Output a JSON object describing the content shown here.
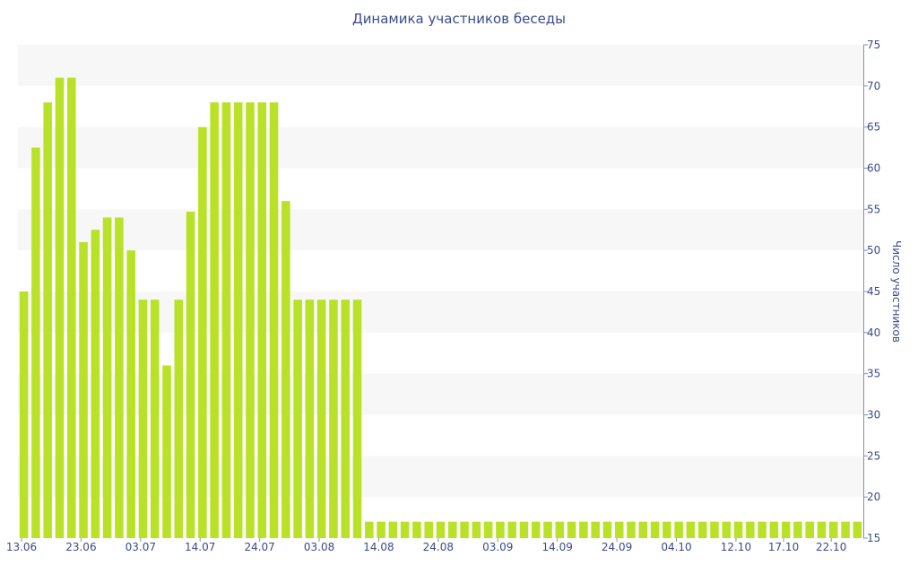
{
  "chart_data": {
    "type": "bar",
    "title": "Динамика участников беседы",
    "ylabel": "Число участников",
    "xlabel": "",
    "ylim": [
      15,
      75
    ],
    "y_ticks": [
      15,
      20,
      25,
      30,
      35,
      40,
      45,
      50,
      55,
      60,
      65,
      70,
      75
    ],
    "grid": "alternating horizontal bands",
    "y_axis_position": "right",
    "x_tick_labels": [
      "13.06",
      "23.06",
      "03.07",
      "14.07",
      "24.07",
      "03.08",
      "14.08",
      "24.08",
      "03.09",
      "14.09",
      "24.09",
      "04.10",
      "12.10",
      "17.10",
      "22.10"
    ],
    "x_tick_positions": [
      0,
      5,
      10,
      15,
      20,
      25,
      30,
      35,
      40,
      45,
      50,
      55,
      60,
      64,
      68
    ],
    "series": [
      {
        "values": [
          45,
          62.5,
          68,
          71,
          71,
          51,
          52.5,
          54,
          54,
          50,
          44,
          44,
          36,
          44,
          54.7,
          65,
          68,
          68,
          68,
          68,
          68,
          68,
          56,
          44,
          44,
          44,
          44,
          44,
          44,
          17,
          17,
          17,
          17,
          17,
          17,
          17,
          17,
          17,
          17,
          17,
          17,
          17,
          17,
          17,
          17,
          17,
          17,
          17,
          17,
          17,
          17,
          17,
          17,
          17,
          17,
          17,
          17,
          17,
          17,
          17,
          17,
          17,
          17,
          17,
          17,
          17,
          17,
          17,
          17,
          17,
          17
        ]
      }
    ],
    "colors": {
      "bar": "#b9e128",
      "text": "#3a4a8c",
      "band": "#f7f7f7"
    }
  }
}
